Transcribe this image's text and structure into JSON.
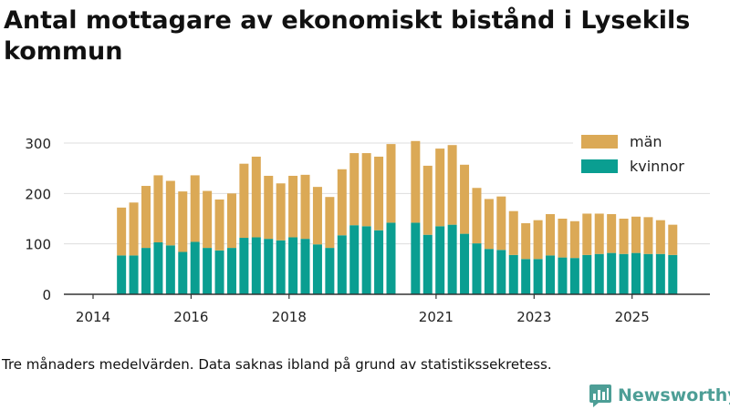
{
  "title": "Antal mottagare av ekonomiskt bistånd i Lysekils kommun",
  "caption": "Tre månaders medelvärden. Data saknas ibland på grund av statistikssekretess.",
  "brand": {
    "name": "Newsworthy",
    "icon": "newsworthy-logo-icon"
  },
  "colors": {
    "man": "#dba956",
    "kvinnor": "#0a9e91",
    "grid": "#dddddd",
    "axis": "#333333"
  },
  "chart_data": {
    "type": "bar",
    "stacked": true,
    "title": "Antal mottagare av ekonomiskt bistånd i Lysekils kommun",
    "xlabel": "",
    "ylabel": "",
    "ylim": [
      0,
      330
    ],
    "xlim": [
      2014.0,
      2026.3
    ],
    "yticks": [
      0,
      100,
      200,
      300
    ],
    "xticks": [
      "2014",
      "2016",
      "2018",
      "2021",
      "2023",
      "2025"
    ],
    "xtick_positions": [
      2014.0,
      2016.0,
      2018.0,
      2021.0,
      2023.0,
      2025.0
    ],
    "legend": [
      "män",
      "kvinnor"
    ],
    "legend_position": "top-right",
    "grid": true,
    "x": [
      2014.58,
      2014.83,
      2015.08,
      2015.33,
      2015.58,
      2015.83,
      2016.08,
      2016.33,
      2016.58,
      2016.83,
      2017.08,
      2017.33,
      2017.58,
      2017.83,
      2018.08,
      2018.33,
      2018.58,
      2018.83,
      2019.08,
      2019.33,
      2019.58,
      2019.83,
      2020.08,
      2020.58,
      2020.83,
      2021.08,
      2021.33,
      2021.58,
      2021.83,
      2022.08,
      2022.33,
      2022.58,
      2022.83,
      2023.08,
      2023.33,
      2023.58,
      2023.83,
      2024.08,
      2024.33,
      2024.58,
      2024.83,
      2025.08,
      2025.33,
      2025.58,
      2025.83
    ],
    "series": [
      {
        "name": "kvinnor",
        "values": [
          77,
          77,
          92,
          103,
          97,
          84,
          104,
          92,
          87,
          92,
          112,
          113,
          110,
          107,
          113,
          110,
          99,
          92,
          117,
          137,
          135,
          127,
          142,
          142,
          118,
          135,
          138,
          120,
          101,
          90,
          88,
          78,
          70,
          70,
          77,
          73,
          72,
          78,
          80,
          82,
          80,
          82,
          80,
          80,
          78
        ]
      },
      {
        "name": "män",
        "values": [
          95,
          105,
          123,
          133,
          128,
          120,
          132,
          113,
          101,
          108,
          147,
          160,
          125,
          113,
          122,
          127,
          114,
          101,
          131,
          143,
          145,
          146,
          156,
          162,
          137,
          154,
          158,
          137,
          110,
          99,
          106,
          87,
          71,
          77,
          82,
          77,
          73,
          82,
          80,
          77,
          70,
          72,
          73,
          67,
          60
        ]
      }
    ]
  }
}
